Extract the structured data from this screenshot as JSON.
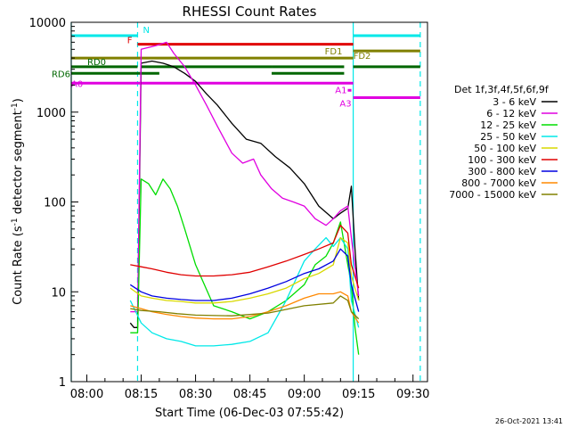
{
  "chart_data": {
    "type": "line",
    "title": "RHESSI Count Rates",
    "xlabel": "Start Time (06-Dec-03 07:55:42)",
    "ylabel_parts": [
      "Count Rate (s",
      "-1",
      " detector segment",
      "-1",
      ")"
    ],
    "x_ticks": [
      "08:00",
      "08:15",
      "08:30",
      "08:45",
      "09:00",
      "09:15",
      "09:30"
    ],
    "y_ticks": [
      "1",
      "10",
      "100",
      "1000",
      "10000"
    ],
    "y_scale": "log",
    "ylim": [
      1,
      10000
    ],
    "xlim": [
      "07:55:42",
      "09:34:00"
    ],
    "timestamp": "26-Oct-2021 13:41",
    "legend": {
      "title": "Det 1f,3f,4f,5f,6f,9f",
      "placement": "right",
      "entries": [
        {
          "label": "3 - 6 keV",
          "color": "#000000"
        },
        {
          "label": "6 - 12 keV",
          "color": "#e000e0"
        },
        {
          "label": "12 - 25 keV",
          "color": "#00dd00"
        },
        {
          "label": "25 - 50 keV",
          "color": "#00e8e8"
        },
        {
          "label": "50 - 100 keV",
          "color": "#d8d800"
        },
        {
          "label": "100 - 300 keV",
          "color": "#e00000"
        },
        {
          "label": "300 - 800 keV",
          "color": "#0000e0"
        },
        {
          "label": "800 - 7000 keV",
          "color": "#ff8800"
        },
        {
          "label": "7000 - 15000 keV",
          "color": "#808000"
        }
      ]
    },
    "series": [
      {
        "name": "3 - 6 keV",
        "color": "#000000",
        "x": [
          "08:12",
          "08:13",
          "08:14",
          "08:15",
          "08:18",
          "08:21",
          "08:24",
          "08:27",
          "08:30",
          "08:33",
          "08:36",
          "08:40",
          "08:44",
          "08:48",
          "08:52",
          "08:56",
          "09:00",
          "09:04",
          "09:08",
          "09:10",
          "09:12",
          "09:13",
          "09:14",
          "09:15"
        ],
        "y": [
          4.5,
          4,
          4,
          3500,
          3700,
          3500,
          3200,
          2700,
          2200,
          1600,
          1200,
          750,
          500,
          450,
          320,
          240,
          160,
          90,
          65,
          75,
          85,
          150,
          30,
          8
        ]
      },
      {
        "name": "6 - 12 keV",
        "color": "#e000e0",
        "x": [
          "08:12",
          "08:14",
          "08:15",
          "08:19",
          "08:22",
          "08:24",
          "08:27",
          "08:30",
          "08:33",
          "08:36",
          "08:40",
          "08:43",
          "08:46",
          "08:48",
          "08:51",
          "08:54",
          "08:57",
          "09:00",
          "09:03",
          "09:06",
          "09:08",
          "09:10",
          "09:12",
          "09:13",
          "09:15"
        ],
        "y": [
          6,
          6,
          5000,
          5500,
          6000,
          4500,
          3200,
          2000,
          1200,
          700,
          350,
          270,
          300,
          200,
          140,
          110,
          100,
          90,
          65,
          55,
          65,
          80,
          90,
          40,
          9
        ]
      },
      {
        "name": "12 - 25 keV",
        "color": "#00dd00",
        "x": [
          "08:12",
          "08:14",
          "08:15",
          "08:17",
          "08:19",
          "08:21",
          "08:23",
          "08:25",
          "08:27",
          "08:30",
          "08:35",
          "08:40",
          "08:45",
          "08:50",
          "08:55",
          "09:00",
          "09:03",
          "09:06",
          "09:08",
          "09:10",
          "09:12",
          "09:13",
          "09:14",
          "09:15"
        ],
        "y": [
          3.5,
          3.5,
          180,
          160,
          120,
          180,
          140,
          90,
          50,
          20,
          7,
          6,
          5,
          6,
          8,
          12,
          20,
          25,
          35,
          60,
          20,
          12,
          4,
          2
        ]
      },
      {
        "name": "25 - 50 keV",
        "color": "#00e8e8",
        "x": [
          "08:12",
          "08:15",
          "08:18",
          "08:22",
          "08:26",
          "08:30",
          "08:35",
          "08:40",
          "08:45",
          "08:50",
          "08:55",
          "09:00",
          "09:03",
          "09:06",
          "09:08",
          "09:10",
          "09:12",
          "09:13",
          "09:15"
        ],
        "y": [
          8,
          4.5,
          3.5,
          3,
          2.8,
          2.5,
          2.5,
          2.6,
          2.8,
          3.5,
          8,
          22,
          30,
          40,
          32,
          40,
          30,
          8,
          4
        ]
      },
      {
        "name": "50 - 100 keV",
        "color": "#d8d800",
        "x": [
          "08:12",
          "08:15",
          "08:18",
          "08:22",
          "08:26",
          "08:30",
          "08:35",
          "08:40",
          "08:45",
          "08:50",
          "08:55",
          "09:00",
          "09:04",
          "09:08",
          "09:10",
          "09:12",
          "09:13",
          "09:15"
        ],
        "y": [
          11,
          9,
          8.5,
          8,
          7.8,
          7.5,
          7.5,
          7.8,
          8.5,
          9.5,
          11,
          14,
          16,
          20,
          40,
          35,
          15,
          8
        ]
      },
      {
        "name": "100 - 300 keV",
        "color": "#e00000",
        "x": [
          "08:12",
          "08:15",
          "08:18",
          "08:22",
          "08:26",
          "08:30",
          "08:35",
          "08:40",
          "08:45",
          "08:50",
          "08:55",
          "09:00",
          "09:04",
          "09:08",
          "09:10",
          "09:12",
          "09:13",
          "09:15"
        ],
        "y": [
          20,
          19,
          18,
          16.5,
          15.5,
          15,
          15,
          15.5,
          16.5,
          19,
          22,
          26,
          30,
          35,
          55,
          45,
          20,
          11
        ]
      },
      {
        "name": "300 - 800 keV",
        "color": "#0000e0",
        "x": [
          "08:12",
          "08:15",
          "08:18",
          "08:22",
          "08:26",
          "08:30",
          "08:35",
          "08:40",
          "08:45",
          "08:50",
          "08:55",
          "09:00",
          "09:04",
          "09:08",
          "09:10",
          "09:12",
          "09:13",
          "09:15"
        ],
        "y": [
          12,
          10,
          9,
          8.5,
          8.2,
          8,
          8,
          8.5,
          9.5,
          11,
          13,
          16,
          18,
          22,
          30,
          25,
          12,
          6
        ]
      },
      {
        "name": "800 - 7000 keV",
        "color": "#ff8800",
        "x": [
          "08:12",
          "08:15",
          "08:18",
          "08:22",
          "08:26",
          "08:30",
          "08:35",
          "08:40",
          "08:45",
          "08:50",
          "08:55",
          "09:00",
          "09:04",
          "09:08",
          "09:10",
          "09:12",
          "09:13",
          "09:15"
        ],
        "y": [
          7,
          6.5,
          6,
          5.6,
          5.3,
          5.1,
          5,
          5,
          5.3,
          6,
          7,
          8.5,
          9.5,
          9.5,
          10,
          9,
          6,
          4.5
        ]
      },
      {
        "name": "7000 - 15000 keV",
        "color": "#808000",
        "x": [
          "08:12",
          "08:15",
          "08:20",
          "08:25",
          "08:30",
          "08:40",
          "08:50",
          "09:00",
          "09:08",
          "09:10",
          "09:12",
          "09:13",
          "09:15"
        ],
        "y": [
          6.5,
          6.2,
          6,
          5.7,
          5.5,
          5.4,
          5.8,
          7,
          7.5,
          9,
          8,
          6,
          5
        ]
      }
    ],
    "vertical_markers": [
      {
        "time": "07:55:42",
        "color": "#00e8e8",
        "style": "solid"
      },
      {
        "time": "08:14",
        "color": "#00e8e8",
        "style": "dashed"
      },
      {
        "time": "09:13:30",
        "color": "#00e8e8",
        "style": "solid"
      },
      {
        "time": "09:32",
        "color": "#00e8e8",
        "style": "dashed"
      }
    ],
    "flag_bars": [
      {
        "label": "N",
        "color": "#00e8e8",
        "segments": [
          [
            "07:55:42",
            "08:14"
          ],
          [
            "09:13:30",
            "09:32"
          ]
        ],
        "y": 7100
      },
      {
        "label": "F",
        "color": "#e00000",
        "segments": [
          [
            "08:14",
            "09:13:30"
          ]
        ],
        "y": 5700
      },
      {
        "label": "FD1",
        "color": "#808000",
        "segments": [
          [
            "07:55:42",
            "09:13:30"
          ]
        ],
        "y": 4000
      },
      {
        "label": "FD2",
        "color": "#808000",
        "segments": [
          [
            "09:13:30",
            "09:32"
          ]
        ],
        "y": 4800
      },
      {
        "label": "RD0",
        "color": "#006600",
        "segments": [
          [
            "07:55:42",
            "08:14"
          ],
          [
            "08:15",
            "08:51"
          ],
          [
            "08:51",
            "09:11"
          ],
          [
            "09:13:30",
            "09:32"
          ]
        ],
        "y": 3200
      },
      {
        "label": "RD6",
        "color": "#006600",
        "segments": [
          [
            "07:55:42",
            "08:14"
          ],
          [
            "08:14",
            "08:20"
          ],
          [
            "08:51",
            "09:11"
          ]
        ],
        "y": 2700
      },
      {
        "label": "A0",
        "color": "#e000e0",
        "segments": [
          [
            "07:55:42",
            "09:13:30"
          ]
        ],
        "y": 2100
      },
      {
        "label": "A1",
        "color": "#e000e0",
        "segments": [
          [
            "09:12",
            "09:13"
          ]
        ],
        "y": 1750
      },
      {
        "label": "A3",
        "color": "#e000e0",
        "segments": [
          [
            "09:13:30",
            "09:32"
          ]
        ],
        "y": 1450
      }
    ]
  }
}
